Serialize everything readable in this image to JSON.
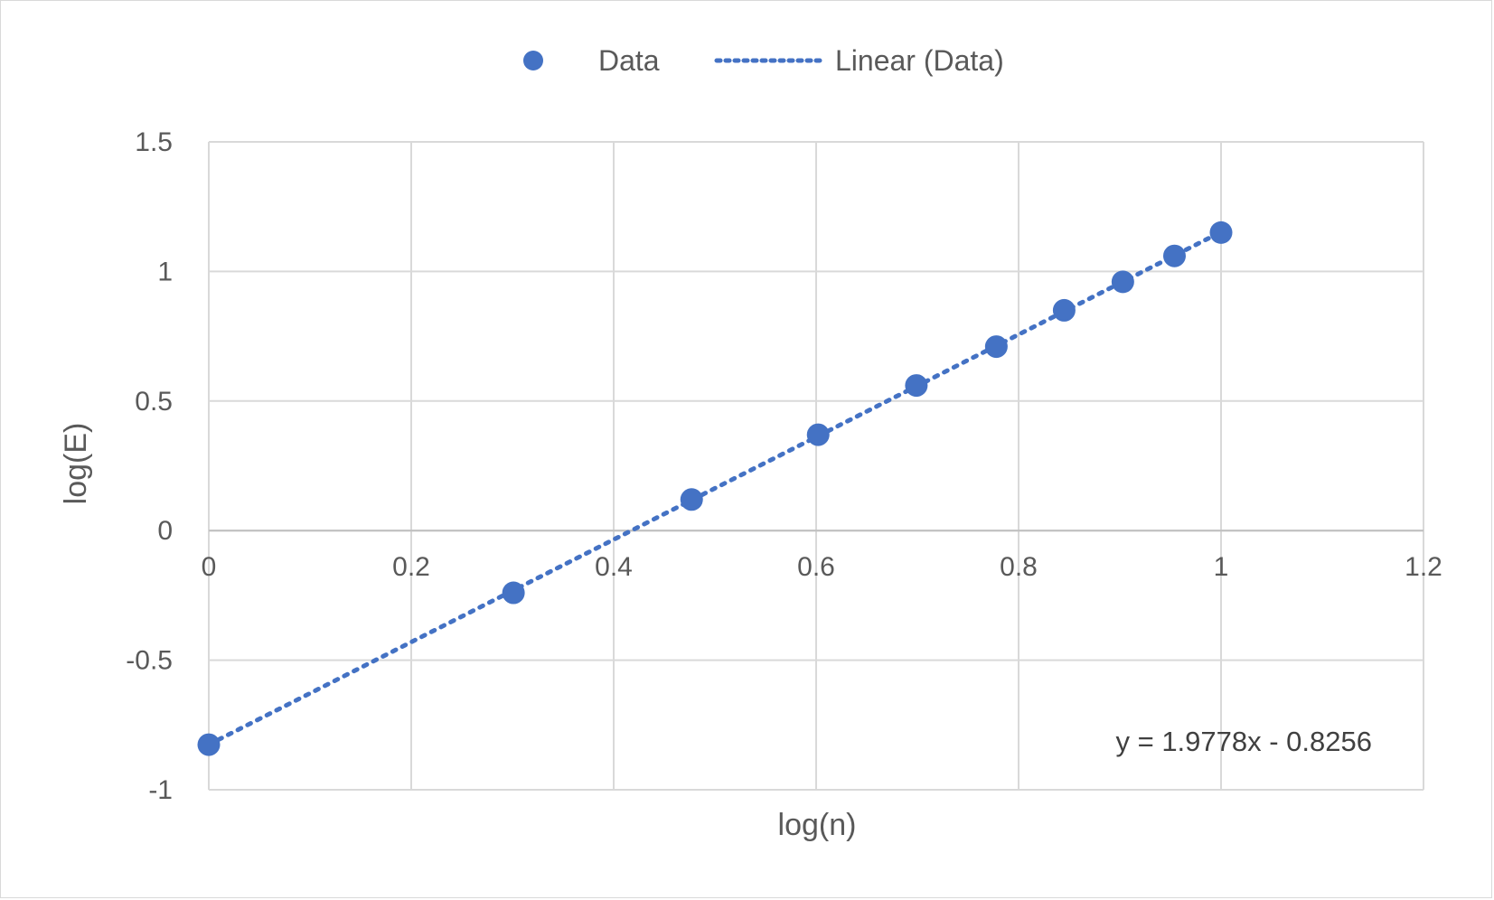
{
  "chart_data": {
    "type": "scatter",
    "xlabel": "log(n)",
    "ylabel": "log(E)",
    "xlim": [
      0,
      1.2
    ],
    "ylim": [
      -1,
      1.5
    ],
    "x_ticks": [
      "0",
      "0.2",
      "0.4",
      "0.6",
      "0.8",
      "1",
      "1.2"
    ],
    "y_ticks": [
      "-1",
      "-0.5",
      "0",
      "0.5",
      "1",
      "1.5"
    ],
    "grid": true,
    "legend_position": "top",
    "series": [
      {
        "name": "Data",
        "color": "#4472C4",
        "marker": "circle",
        "points": [
          {
            "x": 0.0,
            "y": -0.826
          },
          {
            "x": 0.301,
            "y": -0.24
          },
          {
            "x": 0.477,
            "y": 0.12
          },
          {
            "x": 0.602,
            "y": 0.37
          },
          {
            "x": 0.699,
            "y": 0.56
          },
          {
            "x": 0.778,
            "y": 0.71
          },
          {
            "x": 0.845,
            "y": 0.85
          },
          {
            "x": 0.903,
            "y": 0.96
          },
          {
            "x": 0.954,
            "y": 1.06
          },
          {
            "x": 1.0,
            "y": 1.15
          }
        ]
      }
    ],
    "trendline": {
      "name": "Linear (Data)",
      "color": "#4472C4",
      "style": "dotted",
      "slope": 1.9778,
      "intercept": -0.8256,
      "x_range": [
        0,
        1
      ],
      "equation_label": "y = 1.9778x - 0.8256"
    }
  }
}
